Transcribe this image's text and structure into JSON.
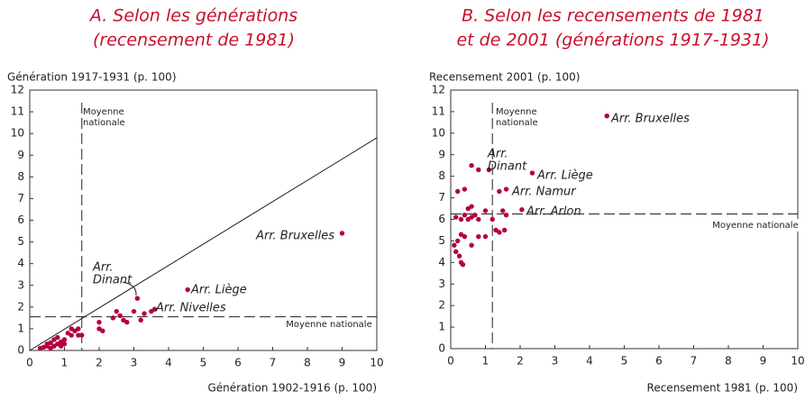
{
  "chart_data": [
    {
      "type": "scatter",
      "title": [
        "A. Selon les générations",
        "(recensement de 1981)"
      ],
      "y_label": "Génération 1917-1931 (p. 100)",
      "x_label": "Génération 1902-1916 (p. 100)",
      "color": "#b5003c",
      "xlim": [
        0,
        10
      ],
      "ylim": [
        0,
        12
      ],
      "xticks": [
        0,
        1,
        2,
        3,
        4,
        5,
        6,
        7,
        8,
        9,
        10
      ],
      "yticks": [
        0,
        1,
        2,
        3,
        4,
        5,
        6,
        7,
        8,
        9,
        10,
        11,
        12
      ],
      "vline": 1.5,
      "hline": 1.55,
      "diagonal": [
        [
          0,
          0
        ],
        [
          10,
          9.8
        ]
      ],
      "annotations": [
        "Moyenne",
        "nationale",
        "Moyenne nationale",
        "Arr. Bruxelles",
        "Arr. Liège",
        "Arr. Nivelles",
        "Arr.",
        "Dinant"
      ],
      "x": [
        0.3,
        0.4,
        0.5,
        0.5,
        0.6,
        0.6,
        0.7,
        0.7,
        0.8,
        0.8,
        0.9,
        0.9,
        1.0,
        1.0,
        1.1,
        1.2,
        1.3,
        1.4,
        1.5,
        1.2,
        1.4,
        2.0,
        2.0,
        2.1,
        2.4,
        2.5,
        2.6,
        2.7,
        2.8,
        3.0,
        3.1,
        3.2,
        3.3,
        3.5,
        3.6,
        4.55,
        9.0
      ],
      "values": [
        0.1,
        0.15,
        0.2,
        0.3,
        0.1,
        0.35,
        0.2,
        0.5,
        0.3,
        0.6,
        0.4,
        0.2,
        0.5,
        0.3,
        0.8,
        0.7,
        0.9,
        0.7,
        0.7,
        1.0,
        1.0,
        1.0,
        1.3,
        0.9,
        1.5,
        1.8,
        1.6,
        1.4,
        1.3,
        1.8,
        2.4,
        1.4,
        1.7,
        1.8,
        1.9,
        2.8,
        5.4
      ]
    },
    {
      "type": "scatter",
      "title": [
        "B. Selon les recensements de 1981",
        "et de 2001 (générations 1917-1931)"
      ],
      "y_label": "Recensement 2001 (p. 100)",
      "x_label": "Recensement 1981 (p. 100)",
      "color": "#b5003c",
      "xlim": [
        0,
        10
      ],
      "ylim": [
        0,
        12
      ],
      "xticks": [
        0,
        1,
        2,
        3,
        4,
        5,
        6,
        7,
        8,
        9,
        10
      ],
      "yticks": [
        0,
        1,
        2,
        3,
        4,
        5,
        6,
        7,
        8,
        9,
        10,
        11,
        12
      ],
      "vline": 1.2,
      "hline": 6.25,
      "annotations": [
        "Moyenne",
        "nationale",
        "Moyenne nationale",
        "Arr. Bruxelles",
        "Arr. Liège",
        "Arr. Namur",
        "Arr. Arlon",
        "Arr.",
        "Dinant"
      ],
      "x": [
        4.5,
        2.35,
        1.6,
        2.05,
        1.1,
        0.6,
        0.8,
        0.2,
        0.4,
        0.5,
        0.6,
        1.4,
        0.15,
        0.3,
        0.4,
        0.5,
        0.6,
        0.7,
        0.8,
        1.0,
        1.2,
        1.3,
        1.5,
        1.6,
        1.55,
        1.0,
        0.8,
        0.6,
        0.3,
        0.2,
        0.1,
        0.15,
        0.25,
        0.3,
        0.35,
        1.4,
        0.4
      ],
      "values": [
        10.8,
        8.15,
        7.4,
        6.45,
        8.3,
        8.5,
        8.3,
        7.3,
        7.4,
        6.5,
        6.6,
        7.3,
        6.1,
        6.0,
        6.2,
        6.0,
        6.1,
        6.2,
        6.0,
        6.4,
        6.0,
        5.5,
        6.4,
        6.2,
        5.5,
        5.2,
        5.2,
        4.8,
        5.3,
        5.0,
        4.8,
        4.5,
        4.3,
        4.0,
        3.9,
        5.4,
        5.2
      ]
    }
  ]
}
